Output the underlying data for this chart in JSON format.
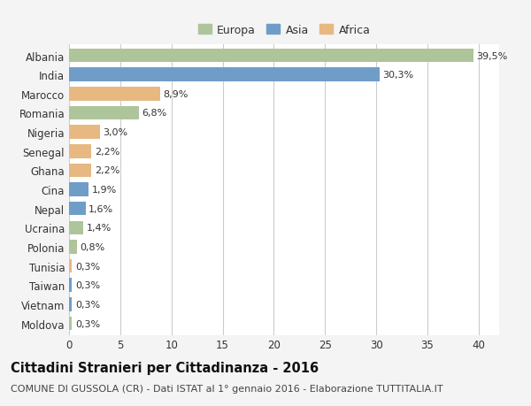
{
  "title": "Cittadini Stranieri per Cittadinanza - 2016",
  "subtitle": "COMUNE DI GUSSOLA (CR) - Dati ISTAT al 1° gennaio 2016 - Elaborazione TUTTITALIA.IT",
  "legend_labels": [
    "Europa",
    "Asia",
    "Africa"
  ],
  "legend_colors": [
    "#aec49a",
    "#6f9dc8",
    "#e8b882"
  ],
  "countries": [
    "Albania",
    "India",
    "Marocco",
    "Romania",
    "Nigeria",
    "Senegal",
    "Ghana",
    "Cina",
    "Nepal",
    "Ucraina",
    "Polonia",
    "Tunisia",
    "Taiwan",
    "Vietnam",
    "Moldova"
  ],
  "values": [
    39.5,
    30.3,
    8.9,
    6.8,
    3.0,
    2.2,
    2.2,
    1.9,
    1.6,
    1.4,
    0.8,
    0.3,
    0.3,
    0.3,
    0.3
  ],
  "label_texts": [
    "39,5%",
    "30,3%",
    "8,9%",
    "6,8%",
    "3,0%",
    "2,2%",
    "2,2%",
    "1,9%",
    "1,6%",
    "1,4%",
    "0,8%",
    "0,3%",
    "0,3%",
    "0,3%",
    "0,3%"
  ],
  "bar_colors": [
    "#aec49a",
    "#6f9dc8",
    "#e8b882",
    "#aec49a",
    "#e8b882",
    "#e8b882",
    "#e8b882",
    "#6f9dc8",
    "#6f9dc8",
    "#aec49a",
    "#aec49a",
    "#e8b882",
    "#6f9dc8",
    "#6f9dc8",
    "#aec49a"
  ],
  "xlim": [
    0,
    42
  ],
  "xticks": [
    0,
    5,
    10,
    15,
    20,
    25,
    30,
    35,
    40
  ],
  "background_color": "#f4f4f4",
  "plot_bg_color": "#ffffff",
  "grid_color": "#cccccc",
  "bar_height": 0.72,
  "title_fontsize": 10.5,
  "subtitle_fontsize": 8,
  "tick_fontsize": 8.5,
  "label_fontsize": 8,
  "legend_fontsize": 9
}
